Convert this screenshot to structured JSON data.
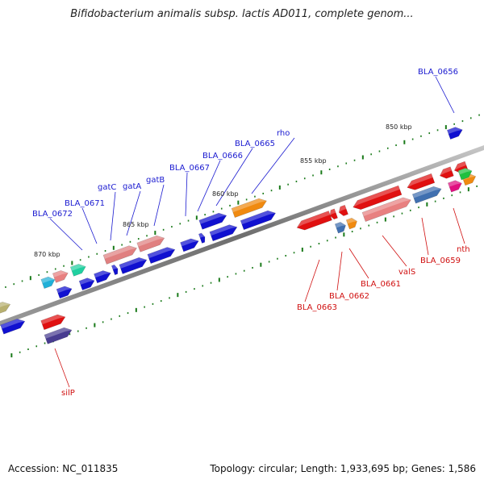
{
  "title": "Bifidobacterium animalis subsp. lactis AD011, complete genom...",
  "footer": {
    "accession": "Accession: NC_011835",
    "summary": "Topology: circular; Length: 1,933,695 bp; Genes: 1,586"
  },
  "colors": {
    "backbone": "#7a7a7a",
    "tick": "#1a7a1a",
    "forward_label": "#1a1ad0",
    "reverse_label": "#d01010"
  },
  "kbp_labels": [
    "870 kbp",
    "865 kbp",
    "860 kbp",
    "855 kbp",
    "850 kbp"
  ],
  "forward_labels": [
    "BLA_0672",
    "BLA_0671",
    "gatC",
    "gatA",
    "gatB",
    "BLA_0667",
    "BLA_0666",
    "BLA_0665",
    "rho",
    "BLA_0656"
  ],
  "reverse_labels": [
    "silP",
    "BLA_0663",
    "BLA_0662",
    "BLA_0661",
    "valS",
    "BLA_0659",
    "nth"
  ]
}
